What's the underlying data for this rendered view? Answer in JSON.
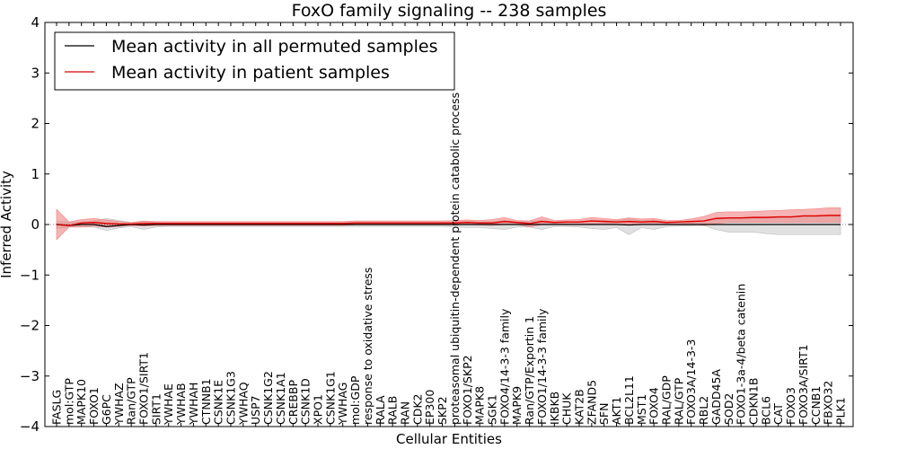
{
  "chart_data": {
    "type": "line",
    "title": "FoxO family signaling -- 238 samples",
    "xlabel": "Cellular Entities",
    "ylabel": "Inferred Activity",
    "ylim": [
      -4,
      4
    ],
    "yticks": [
      -4,
      -3,
      -2,
      -1,
      0,
      1,
      2,
      3,
      4
    ],
    "ytick_labels": [
      "−4",
      "−3",
      "−2",
      "−1",
      "0",
      "1",
      "2",
      "3",
      "4"
    ],
    "grid": false,
    "legend_position": "top-left",
    "categories": [
      "FASLG",
      "mol:GTP",
      "MAPK10",
      "FOXO1",
      "G6PC",
      "YWHAZ",
      "Ran/GTP",
      "FOXO1/SIRT1",
      "SIRT1",
      "YWHAE",
      "YWHAB",
      "YWHAH",
      "CTNNB1",
      "CSNK1E",
      "CSNK1G3",
      "YWHAQ",
      "USP7",
      "CSNK1G2",
      "CSNK1A1",
      "CREBBP",
      "CSNK1D",
      "XPO1",
      "CSNK1G1",
      "YWHAG",
      "mol:GDP",
      "response to oxidative stress",
      "RALA",
      "RALB",
      "RAN",
      "CDK2",
      "EP300",
      "SKP2",
      "proteasomal ubiquitin-dependent protein catabolic process",
      "FOXO1/SKP2",
      "MAPK8",
      "SGK1",
      "FOXO4/14-3-3 family",
      "MAPK9",
      "Ran/GTP/Exportin 1",
      "FOXO1/14-3-3 family",
      "IKBKB",
      "CHUK",
      "KAT2B",
      "ZFAND5",
      "SFN",
      "AKT1",
      "BCL2L11",
      "MST1",
      "FOXO4",
      "RAL/GDP",
      "RAL/GTP",
      "FOXO3A/14-3-3",
      "RBL2",
      "GADD45A",
      "SOD2",
      "FOXO1-3a-4/beta catenin",
      "CDKN1B",
      "BCL6",
      "CAT",
      "FOXO3",
      "FOXO3A/SIRT1",
      "CCNB1",
      "FBXO32",
      "PLK1"
    ],
    "series": [
      {
        "name": "Mean activity in all permuted samples",
        "color": "#000000",
        "band_color": "#bbbbbb",
        "values": [
          0,
          -0.02,
          0,
          0,
          -0.04,
          -0.02,
          0,
          -0.01,
          0,
          0,
          0,
          0,
          0,
          0,
          0,
          0,
          0,
          0,
          0,
          0,
          0,
          0,
          0,
          0,
          0,
          0,
          0,
          0,
          0,
          0,
          0,
          0,
          0,
          0,
          0,
          0,
          0,
          0,
          0,
          0,
          0,
          0,
          0,
          0,
          0,
          0,
          -0.01,
          0,
          0,
          0,
          0,
          0,
          0,
          0,
          0,
          0,
          0,
          0,
          0,
          0,
          0,
          0,
          0,
          0
        ],
        "band_low": [
          -0.08,
          -0.05,
          -0.05,
          -0.05,
          -0.12,
          -0.07,
          -0.04,
          -0.1,
          -0.05,
          -0.04,
          -0.04,
          -0.04,
          -0.04,
          -0.04,
          -0.04,
          -0.04,
          -0.04,
          -0.04,
          -0.04,
          -0.04,
          -0.04,
          -0.04,
          -0.04,
          -0.04,
          -0.04,
          -0.04,
          -0.04,
          -0.04,
          -0.04,
          -0.04,
          -0.04,
          -0.04,
          -0.05,
          -0.06,
          -0.06,
          -0.08,
          -0.1,
          -0.05,
          -0.05,
          -0.1,
          -0.04,
          -0.04,
          -0.05,
          -0.08,
          -0.1,
          -0.06,
          -0.2,
          -0.06,
          -0.1,
          -0.04,
          -0.03,
          -0.03,
          -0.02,
          -0.1,
          -0.15,
          -0.15,
          -0.15,
          -0.18,
          -0.2,
          -0.2,
          -0.2,
          -0.2,
          -0.2,
          -0.2
        ],
        "band_high": [
          0.06,
          0.05,
          0.05,
          0.07,
          0.12,
          0.08,
          0.04,
          0.05,
          0.04,
          0.04,
          0.04,
          0.04,
          0.04,
          0.04,
          0.04,
          0.04,
          0.04,
          0.04,
          0.04,
          0.04,
          0.04,
          0.04,
          0.04,
          0.04,
          0.04,
          0.04,
          0.04,
          0.04,
          0.04,
          0.04,
          0.04,
          0.04,
          0.05,
          0.06,
          0.05,
          0.06,
          0.08,
          0.05,
          0.06,
          0.08,
          0.05,
          0.05,
          0.06,
          0.08,
          0.08,
          0.07,
          0.12,
          0.07,
          0.09,
          0.05,
          0.04,
          0.04,
          0.05,
          0.1,
          0.12,
          0.12,
          0.12,
          0.13,
          0.13,
          0.14,
          0.15,
          0.15,
          0.15,
          0.15
        ]
      },
      {
        "name": "Mean activity in patient samples",
        "color": "#dd0000",
        "band_color": "#f08080",
        "values": [
          0,
          -0.02,
          0.03,
          0.04,
          0.02,
          0.01,
          0.01,
          0.02,
          0.02,
          0.02,
          0.02,
          0.02,
          0.02,
          0.02,
          0.02,
          0.02,
          0.02,
          0.02,
          0.02,
          0.02,
          0.02,
          0.02,
          0.02,
          0.02,
          0.03,
          0.03,
          0.03,
          0.03,
          0.03,
          0.03,
          0.03,
          0.03,
          0.03,
          0.04,
          0.03,
          0.03,
          0.06,
          0.04,
          0.02,
          0.06,
          0.04,
          0.05,
          0.05,
          0.07,
          0.06,
          0.05,
          0.06,
          0.05,
          0.06,
          0.04,
          0.05,
          0.06,
          0.07,
          0.12,
          0.13,
          0.13,
          0.14,
          0.14,
          0.15,
          0.15,
          0.17,
          0.17,
          0.18,
          0.18
        ],
        "band_low": [
          -0.3,
          -0.05,
          -0.05,
          -0.03,
          -0.05,
          -0.04,
          -0.02,
          -0.03,
          -0.02,
          -0.02,
          -0.02,
          -0.02,
          -0.02,
          -0.02,
          -0.02,
          -0.02,
          -0.02,
          -0.02,
          -0.02,
          -0.02,
          -0.02,
          -0.02,
          -0.02,
          -0.02,
          -0.01,
          -0.01,
          -0.01,
          -0.01,
          -0.01,
          -0.01,
          -0.01,
          -0.01,
          -0.01,
          0,
          -0.01,
          -0.02,
          0,
          0,
          -0.05,
          0,
          0,
          0.01,
          0,
          0.01,
          0,
          0,
          0,
          0,
          0,
          0,
          0.01,
          0.02,
          -0.02,
          0.02,
          0.04,
          0.04,
          0.04,
          0.04,
          0.04,
          0.04,
          0.04,
          0.04,
          0.04,
          0.04
        ],
        "band_high": [
          0.3,
          0.05,
          0.1,
          0.12,
          0.09,
          0.06,
          0.04,
          0.07,
          0.06,
          0.06,
          0.06,
          0.06,
          0.06,
          0.06,
          0.06,
          0.06,
          0.06,
          0.06,
          0.06,
          0.06,
          0.06,
          0.06,
          0.06,
          0.06,
          0.07,
          0.07,
          0.07,
          0.07,
          0.07,
          0.07,
          0.07,
          0.07,
          0.08,
          0.09,
          0.08,
          0.1,
          0.14,
          0.08,
          0.07,
          0.15,
          0.08,
          0.09,
          0.1,
          0.14,
          0.12,
          0.1,
          0.13,
          0.11,
          0.12,
          0.08,
          0.08,
          0.11,
          0.16,
          0.24,
          0.25,
          0.25,
          0.26,
          0.27,
          0.28,
          0.29,
          0.3,
          0.31,
          0.33,
          0.33
        ]
      }
    ]
  }
}
